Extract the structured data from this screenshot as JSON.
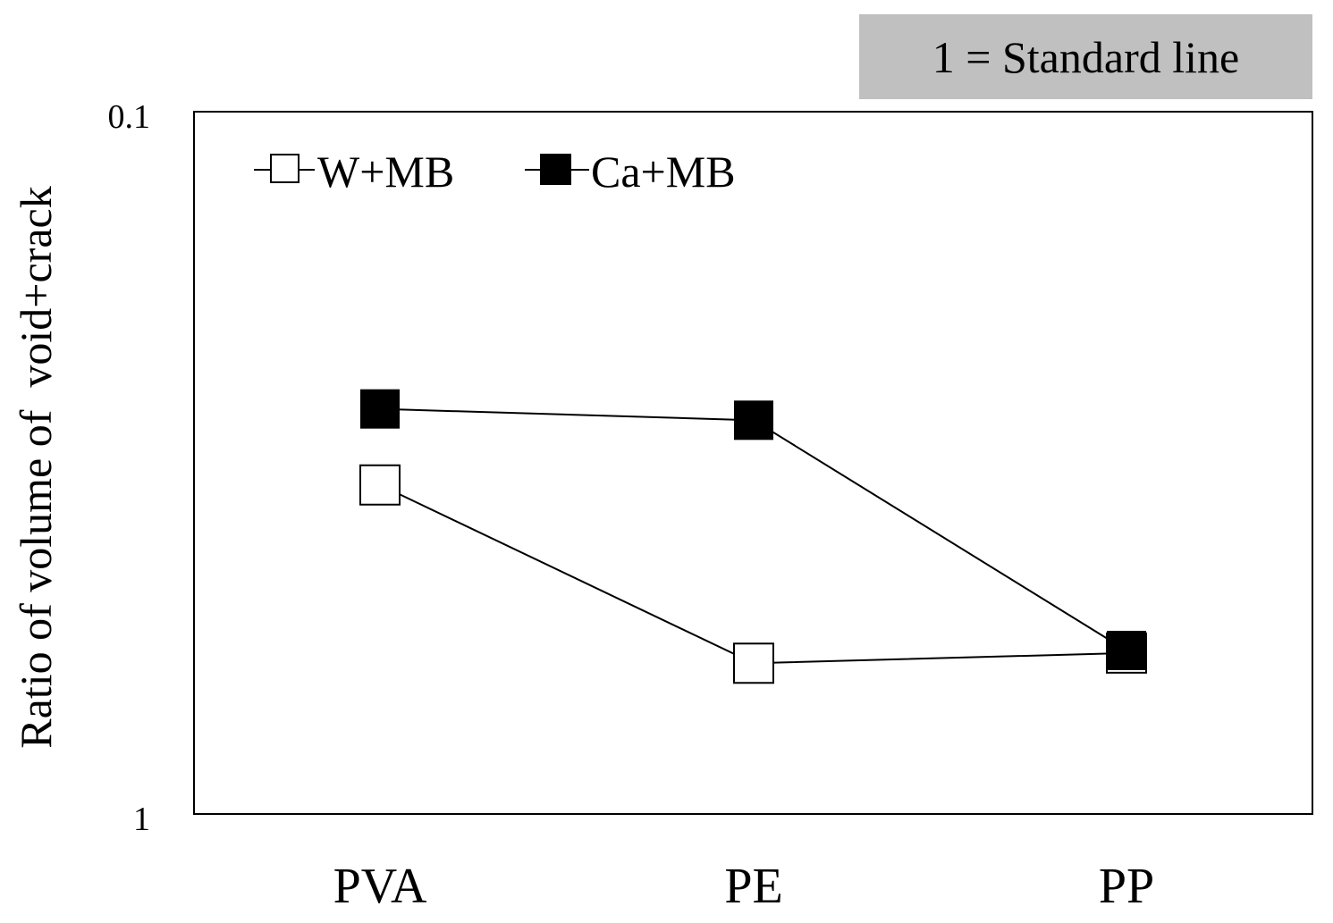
{
  "chart_data": {
    "type": "line",
    "annotation": "1 = Standard line",
    "ylabel": "Ratio of volume of  void+crack",
    "xlabel": "",
    "title": "",
    "y_scale": "log",
    "y_reversed": true,
    "ylim": [
      1,
      0.1
    ],
    "y_ticks": [
      "0.1",
      "1"
    ],
    "categories": [
      "PVA",
      "PE",
      "PP"
    ],
    "series": [
      {
        "name": "W+MB",
        "marker": "open-square",
        "color": "#000000",
        "values": [
          0.34,
          0.61,
          0.59
        ]
      },
      {
        "name": "Ca+MB",
        "marker": "filled-square",
        "color": "#000000",
        "values": [
          0.265,
          0.275,
          0.585
        ]
      }
    ],
    "legend_position": "top-left",
    "grid": false
  }
}
